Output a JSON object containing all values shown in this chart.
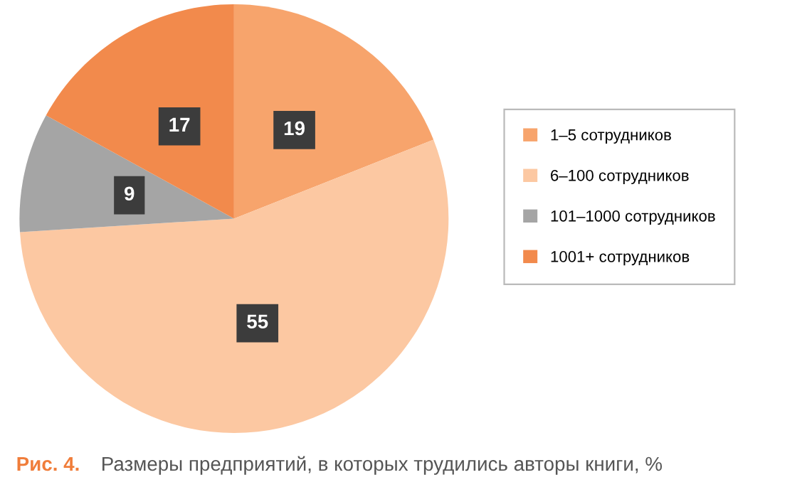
{
  "chart_data": {
    "type": "pie",
    "title": "Рис. 4.",
    "subtitle": "Размеры предприятий, в которых трудились авторы книги, %",
    "categories": [
      "1–5 сотрудников",
      "6–100 сотрудников",
      "101–1000 сотрудников",
      "1001+ сотрудников"
    ],
    "values": [
      19,
      55,
      9,
      17
    ],
    "colors": [
      "#f7a46c",
      "#fcc8a2",
      "#a5a5a5",
      "#f28a4c"
    ],
    "data_labels": true,
    "legend": "right"
  }
}
